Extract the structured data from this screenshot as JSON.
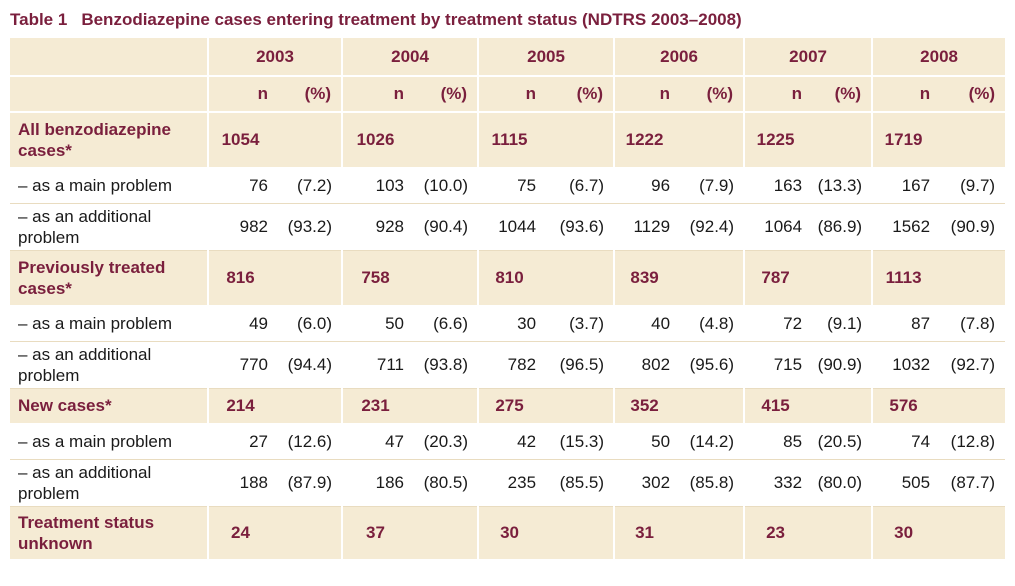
{
  "title": {
    "number": "Table 1",
    "text": "Benzodiazepine cases entering treatment by treatment status (NDTRS 2003–2008)"
  },
  "years": [
    "2003",
    "2004",
    "2005",
    "2006",
    "2007",
    "2008"
  ],
  "subheaders": {
    "n": "n",
    "pct": "(%)"
  },
  "groups": [
    {
      "label": "All benzodiazepine cases*",
      "totals": [
        "1054",
        "1026",
        "1115",
        "1222",
        "1225",
        "1719"
      ],
      "rows": [
        {
          "label": "– as a main problem",
          "n": [
            "76",
            "103",
            "75",
            "96",
            "163",
            "167"
          ],
          "pct": [
            "(7.2)",
            "(10.0)",
            "(6.7)",
            "(7.9)",
            "(13.3)",
            "(9.7)"
          ]
        },
        {
          "label": "– as an additional problem",
          "n": [
            "982",
            "928",
            "1044",
            "1129",
            "1064",
            "1562"
          ],
          "pct": [
            "(93.2)",
            "(90.4)",
            "(93.6)",
            "(92.4)",
            "(86.9)",
            "(90.9)"
          ]
        }
      ]
    },
    {
      "label": "Previously treated cases*",
      "totals": [
        "816",
        "758",
        "810",
        "839",
        "787",
        "1113"
      ],
      "rows": [
        {
          "label": "– as a main problem",
          "n": [
            "49",
            "50",
            "30",
            "40",
            "72",
            "87"
          ],
          "pct": [
            "(6.0)",
            "(6.6)",
            "(3.7)",
            "(4.8)",
            "(9.1)",
            "(7.8)"
          ]
        },
        {
          "label": "– as an additional problem",
          "n": [
            "770",
            "711",
            "782",
            "802",
            "715",
            "1032"
          ],
          "pct": [
            "(94.4)",
            "(93.8)",
            "(96.5)",
            "(95.6)",
            "(90.9)",
            "(92.7)"
          ]
        }
      ]
    },
    {
      "label": "New cases*",
      "totals": [
        "214",
        "231",
        "275",
        "352",
        "415",
        "576"
      ],
      "rows": [
        {
          "label": "– as a main problem",
          "n": [
            "27",
            "47",
            "42",
            "50",
            "85",
            "74"
          ],
          "pct": [
            "(12.6)",
            "(20.3)",
            "(15.3)",
            "(14.2)",
            "(20.5)",
            "(12.8)"
          ]
        },
        {
          "label": "– as an additional problem",
          "n": [
            "188",
            "186",
            "235",
            "302",
            "332",
            "505"
          ],
          "pct": [
            "(87.9)",
            "(80.5)",
            "(85.5)",
            "(85.8)",
            "(80.0)",
            "(87.7)"
          ]
        }
      ]
    }
  ],
  "unknown": {
    "label": "Treatment status unknown",
    "totals": [
      "24",
      "37",
      "30",
      "31",
      "23",
      "30"
    ]
  }
}
